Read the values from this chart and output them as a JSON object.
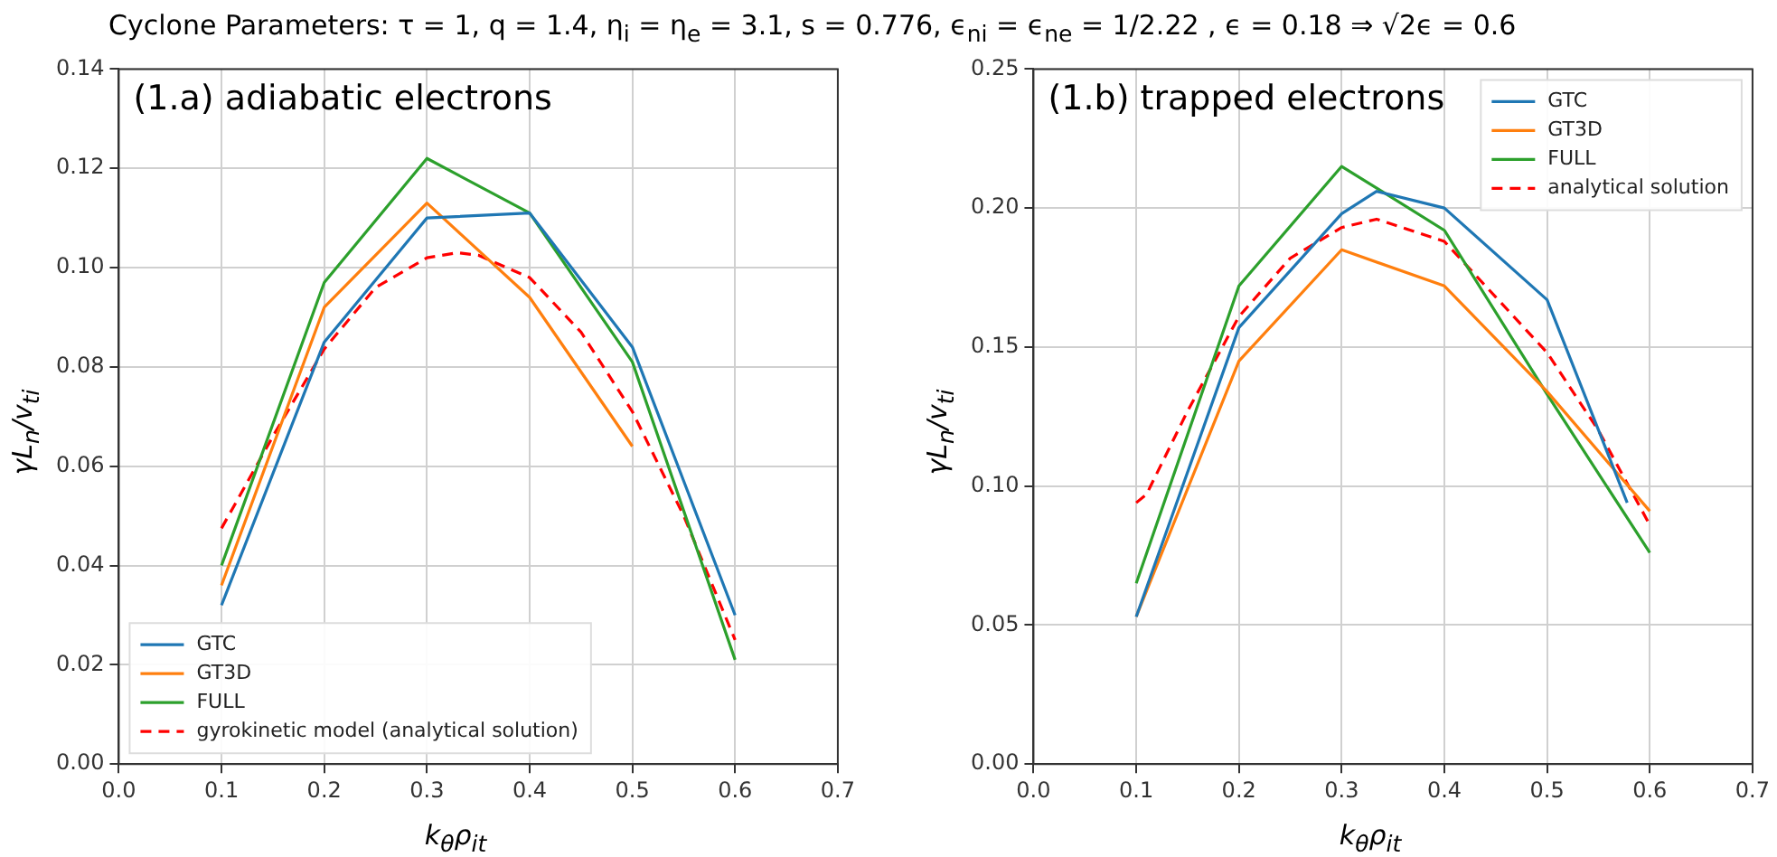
{
  "chart_data": [
    {
      "type": "line",
      "title": "(1.a) adiabatic electrons",
      "subtitle": "Cyclone Parameters: τ = 1, q = 1.4, η$_{i}$ = η$_{e}$ = 3.1, s = 0.776, ϵ$_{ni}$ = ϵ$_{ne}$ = 1/2.22 , ϵ = 0.18 ⇒ √2ϵ = 0.6",
      "xlabel": "k$_{θ}$ρ$_{it}$",
      "ylabel": "γL$_{n}$/v$_{ti}$",
      "x": [
        0.1,
        0.2,
        0.3,
        0.4,
        0.5,
        0.6
      ],
      "series": [
        {
          "name": "GTC",
          "color": "#1f77b4",
          "values": [
            0.032,
            0.085,
            0.11,
            0.111,
            0.084,
            0.03
          ]
        },
        {
          "name": "GT3D",
          "color": "#ff7f0e",
          "values": [
            0.036,
            0.092,
            0.113,
            0.094,
            0.064,
            null
          ]
        },
        {
          "name": "FULL",
          "color": "#2ca02c",
          "values": [
            0.04,
            0.097,
            0.122,
            0.111,
            0.081,
            0.021
          ]
        },
        {
          "name": "gyrokinetic model (analytical solution)",
          "color": "#ff0000",
          "line_style": "dashed",
          "x": [
            0.1,
            0.15,
            0.2,
            0.25,
            0.3,
            0.33,
            0.35,
            0.4,
            0.45,
            0.5,
            0.55,
            0.6
          ],
          "values": [
            0.0475,
            0.066,
            0.0836,
            0.096,
            0.102,
            0.103,
            0.1025,
            0.098,
            0.087,
            0.071,
            0.05,
            0.025
          ]
        }
      ],
      "xlim": [
        0,
        0.7
      ],
      "xticks": [
        {
          "value": 0,
          "label": "0.0"
        },
        0.1,
        0.2,
        0.3,
        0.4,
        0.5,
        0.6,
        0.7
      ],
      "ylim": [
        0,
        0.14
      ],
      "yticks": [
        {
          "value": 0,
          "label": "0.00"
        },
        0.02,
        0.04,
        0.06,
        0.08,
        {
          "value": 0.1,
          "label": "0.10"
        },
        0.12,
        0.14
      ],
      "grid": true,
      "legend": "bottom left",
      "marker": "none",
      "line_style": "solid"
    },
    {
      "type": "line",
      "title": "(1.b) trapped electrons",
      "xlabel": "k$_{θ}$ρ$_{it}$",
      "ylabel": "γL$_{n}$/v$_{ti}$",
      "x": [
        0.1,
        0.2,
        0.3,
        0.4,
        0.5,
        0.6
      ],
      "series": [
        {
          "name": "GTC",
          "color": "#1f77b4",
          "x": [
            0.1,
            0.2,
            0.3,
            0.334,
            0.4,
            0.5,
            0.578
          ],
          "values": [
            0.053,
            0.157,
            0.198,
            0.206,
            0.2,
            0.167,
            0.094
          ]
        },
        {
          "name": "GT3D",
          "color": "#ff7f0e",
          "values": [
            0.053,
            0.145,
            0.185,
            0.172,
            0.134,
            0.091
          ]
        },
        {
          "name": "FULL",
          "color": "#2ca02c",
          "values": [
            0.065,
            0.172,
            0.215,
            0.192,
            0.133,
            0.076
          ]
        },
        {
          "name": "analytical solution",
          "color": "#ff0000",
          "line_style": "dashed",
          "x": [
            0.1,
            0.11,
            0.15,
            0.2,
            0.25,
            0.3,
            0.334,
            0.4,
            0.45,
            0.5,
            0.55,
            0.6
          ],
          "values": [
            0.094,
            0.097,
            0.127,
            0.161,
            0.182,
            0.193,
            0.196,
            0.188,
            0.168,
            0.148,
            0.12,
            0.086
          ]
        }
      ],
      "xlim": [
        0,
        0.7
      ],
      "xticks": [
        {
          "value": 0,
          "label": "0.0"
        },
        0.1,
        0.2,
        0.3,
        0.4,
        0.5,
        0.6,
        0.7
      ],
      "ylim": [
        0,
        0.25
      ],
      "yticks": [
        {
          "value": 0,
          "label": "0.00"
        },
        0.05,
        {
          "value": 0.1,
          "label": "0.10"
        },
        0.15,
        {
          "value": 0.2,
          "label": "0.20"
        },
        0.25
      ],
      "grid": true,
      "legend": "top right",
      "marker": "none",
      "line_style": "solid"
    }
  ]
}
